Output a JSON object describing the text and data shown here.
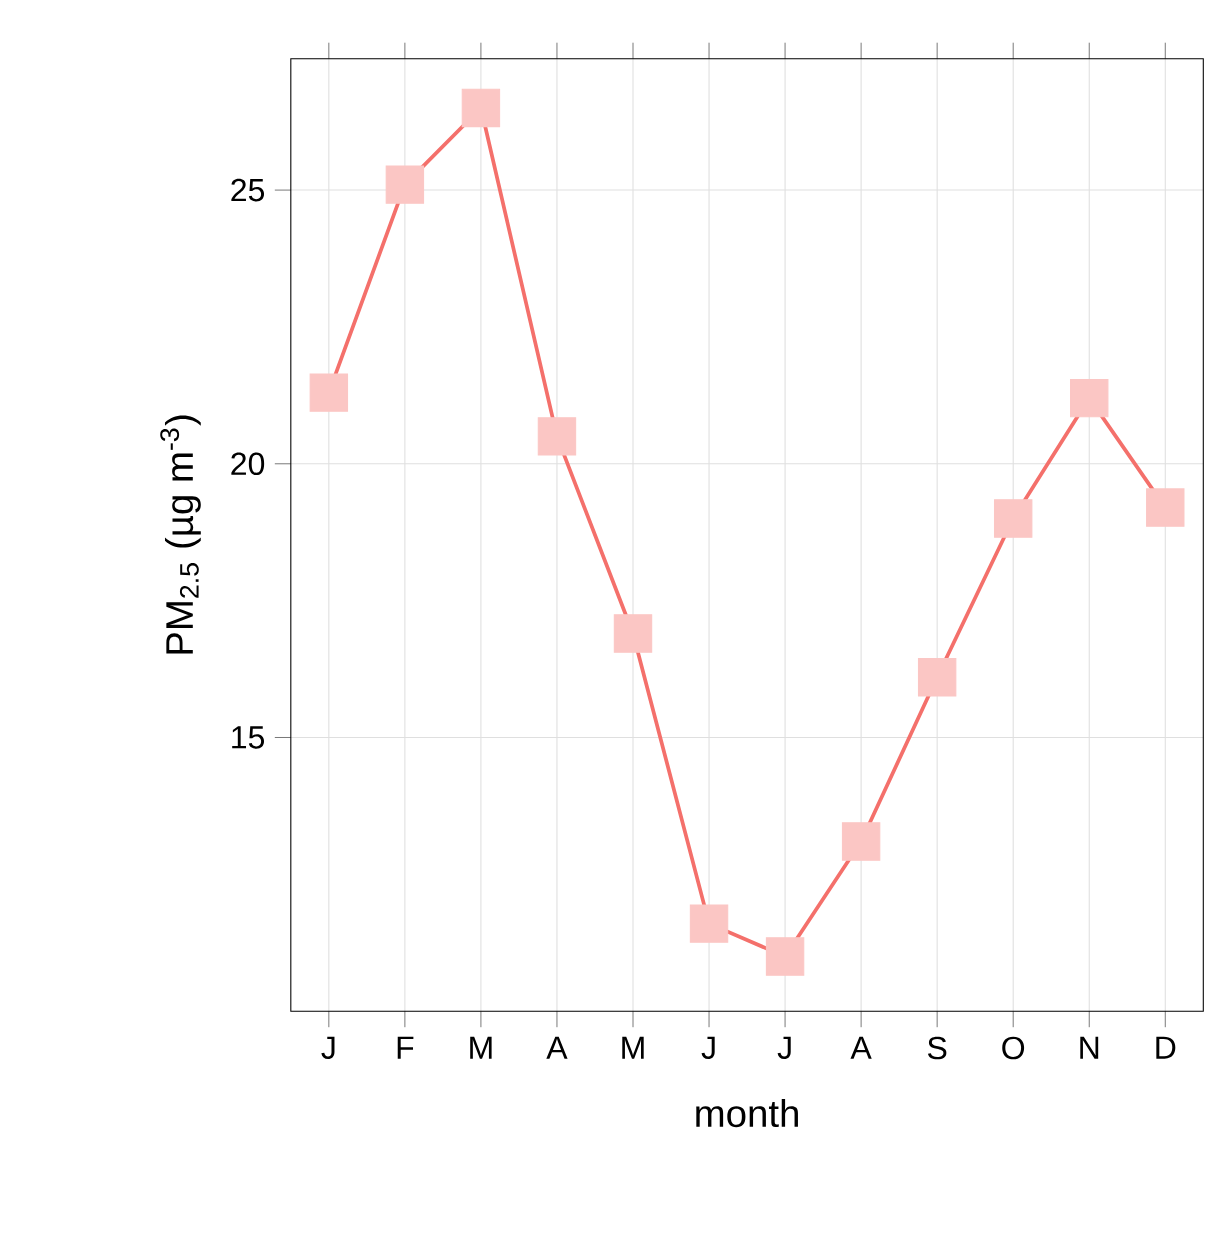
{
  "chart_data": {
    "type": "line",
    "xlabel": "month",
    "ylabel": "PM$_{2.5}$ (µg m$^{-3}$)",
    "categories": [
      "J",
      "F",
      "M",
      "A",
      "M",
      "J",
      "J",
      "A",
      "S",
      "O",
      "N",
      "D"
    ],
    "series": [
      {
        "color": "#f4706b",
        "values": [
          21.3,
          25.1,
          26.5,
          20.5,
          16.9,
          11.6,
          11.0,
          13.1,
          16.1,
          19.0,
          21.2,
          19.2
        ]
      }
    ],
    "ylim": [
      10.0,
      27.4
    ],
    "yticks": [
      15,
      20,
      25
    ],
    "grid": true,
    "marker": "square",
    "line_style": "solid"
  }
}
